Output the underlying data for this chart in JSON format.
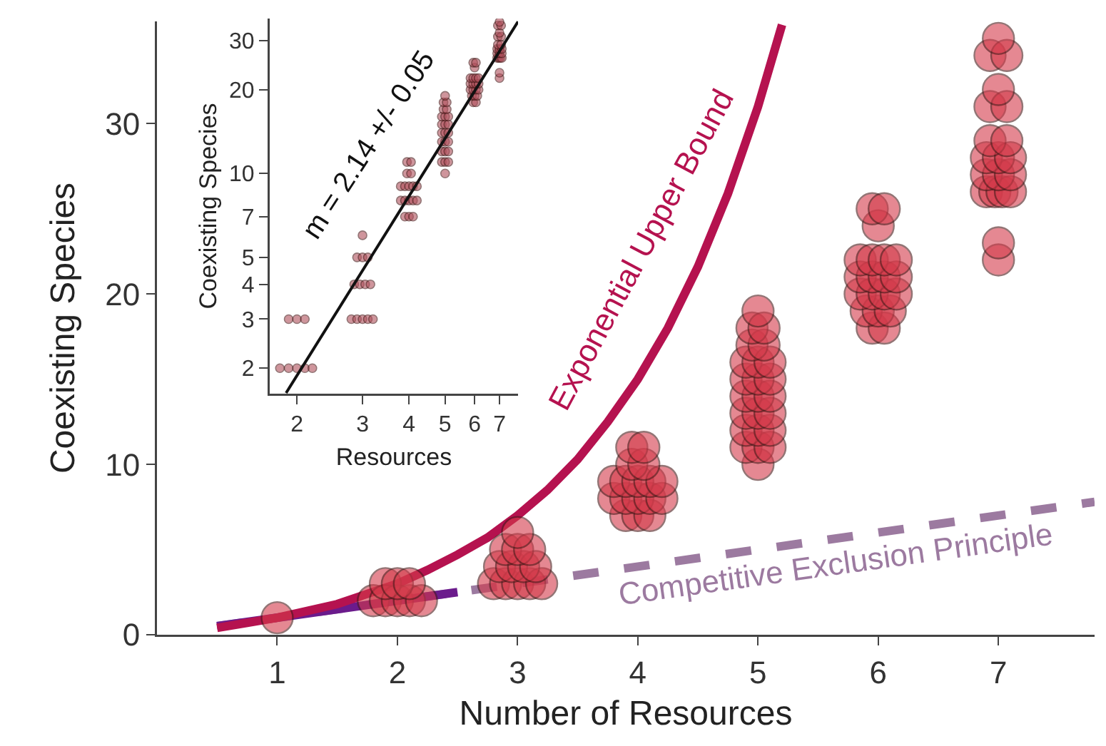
{
  "chart_data": [
    {
      "type": "scatter",
      "xlabel": "Number of Resources",
      "ylabel": "Coexisting Species",
      "xlim": [
        0,
        7.8
      ],
      "xticks": [
        1,
        2,
        3,
        4,
        5,
        6,
        7
      ],
      "ylim": [
        0,
        36
      ],
      "yticks": [
        0,
        10,
        20,
        30
      ],
      "grid": false,
      "series": [
        {
          "type": "line",
          "color": "#9c7aa0",
          "line_style": "dashed",
          "x": [
            0.5,
            7.8
          ],
          "values": [
            0.5,
            7.8
          ]
        },
        {
          "type": "line",
          "color": "#6b1b8c",
          "line_style": "solid",
          "x": [
            0.5,
            2.5
          ],
          "values": [
            0.5,
            2.5
          ]
        },
        {
          "type": "line",
          "color": "#b5124f",
          "line_style": "solid",
          "x": [
            0.5,
            0.75,
            1,
            1.25,
            1.5,
            1.75,
            2,
            2.25,
            2.5,
            2.75,
            3,
            3.25,
            3.5,
            3.75,
            4,
            4.25,
            4.5,
            4.75,
            5,
            5.2
          ],
          "values": [
            0.4,
            0.7,
            1,
            1.4,
            1.8,
            2.4,
            3,
            3.8,
            4.7,
            5.7,
            7,
            8.5,
            10.3,
            12.5,
            15,
            18,
            21.6,
            25.9,
            31,
            35.8
          ]
        },
        {
          "type": "scatter",
          "marker": "circle",
          "color": "#d43a4a",
          "x": [
            1,
            1.8,
            1.9,
            2,
            2.1,
            2.2,
            1.9,
            2,
            2.1,
            2.8,
            2.9,
            3,
            3.1,
            3.2,
            2.85,
            2.95,
            3.05,
            3.15,
            2.9,
            3,
            3.1,
            3,
            3.9,
            4,
            4.1,
            3.8,
            3.9,
            4,
            4.1,
            4.2,
            3.8,
            3.9,
            4,
            4.1,
            4.2,
            3.95,
            4.05,
            3.95,
            4.05,
            5,
            4.9,
            5,
            5.1,
            4.9,
            5,
            5.1,
            4.9,
            5,
            5.1,
            4.9,
            5,
            5.1,
            4.9,
            5,
            5.1,
            4.9,
            5,
            5.1,
            4.95,
            5.05,
            4.95,
            5.05,
            5,
            5.95,
            6.05,
            5.9,
            6,
            6.1,
            5.85,
            5.95,
            6.05,
            6.15,
            5.85,
            5.95,
            6.05,
            6.15,
            5.85,
            5.95,
            6.05,
            6.15,
            6,
            5.95,
            6.05,
            7,
            7,
            6.9,
            6.97,
            7.03,
            7.1,
            6.9,
            7,
            7.1,
            6.9,
            7,
            7.1,
            6.93,
            7.07,
            6.93,
            7.07,
            7,
            6.93,
            7.07,
            7
          ],
          "values": [
            1,
            2,
            2,
            2,
            2,
            2,
            3,
            3,
            3,
            3,
            3,
            3,
            3,
            3,
            4,
            4,
            4,
            4,
            5,
            5,
            5,
            6,
            7,
            7,
            7,
            8,
            8,
            8,
            8,
            8,
            9,
            9,
            9,
            9,
            9,
            10,
            10,
            11,
            11,
            10,
            11,
            11,
            11,
            12,
            12,
            12,
            13,
            13,
            13,
            14,
            14,
            14,
            15,
            15,
            15,
            16,
            16,
            16,
            17,
            17,
            18,
            18,
            19,
            18,
            18,
            19,
            19,
            19,
            20,
            20,
            20,
            20,
            21,
            21,
            21,
            21,
            22,
            22,
            22,
            22,
            24,
            25,
            25,
            22,
            23,
            26,
            26,
            26,
            26,
            27,
            27,
            27,
            28,
            28,
            28,
            29,
            29,
            31,
            31,
            32,
            34,
            34,
            35
          ]
        }
      ],
      "annotations": [
        "Exponential Upper Bound",
        "Competitive Exclusion Principle"
      ]
    },
    {
      "type": "scatter",
      "xlabel": "Resources",
      "ylabel": "Coexisting Species",
      "log": "xy",
      "xlim": [
        1.69,
        7.85
      ],
      "xticks": [
        2,
        3,
        4,
        5,
        6,
        7
      ],
      "ylim": [
        1.62,
        36
      ],
      "yticks": [
        2,
        3,
        4,
        5,
        7,
        10,
        20,
        30
      ],
      "grid": false,
      "series": [
        {
          "type": "scatter",
          "marker": "circle",
          "color": "#b0505c",
          "x": [
            1.8,
            1.9,
            2,
            2.1,
            2.2,
            1.9,
            2,
            2.1,
            2.8,
            2.9,
            3,
            3.1,
            3.2,
            2.85,
            2.95,
            3.05,
            3.15,
            2.9,
            3,
            3.1,
            3,
            3.9,
            4,
            4.1,
            3.8,
            3.9,
            4,
            4.1,
            4.2,
            3.8,
            3.9,
            4,
            4.1,
            4.2,
            3.95,
            4.05,
            3.95,
            4.05,
            5,
            4.9,
            5,
            5.1,
            4.9,
            5,
            5.1,
            4.9,
            5,
            5.1,
            4.9,
            5,
            5.1,
            4.9,
            5,
            5.1,
            4.9,
            5,
            5.1,
            4.95,
            5.05,
            4.95,
            5.05,
            5,
            5.95,
            6.05,
            5.9,
            6,
            6.1,
            5.85,
            5.95,
            6.05,
            6.15,
            5.85,
            5.95,
            6.05,
            6.15,
            5.85,
            5.95,
            6.05,
            6.15,
            6,
            5.95,
            6.05,
            7,
            7,
            6.9,
            6.97,
            7.03,
            7.1,
            6.9,
            7,
            7.1,
            6.9,
            7,
            7.1,
            6.93,
            7.07,
            6.93,
            7.07,
            7,
            6.93,
            7.07,
            7
          ],
          "values": [
            2,
            2,
            2,
            2,
            2,
            3,
            3,
            3,
            3,
            3,
            3,
            3,
            3,
            4,
            4,
            4,
            4,
            5,
            5,
            5,
            6,
            7,
            7,
            7,
            8,
            8,
            8,
            8,
            8,
            9,
            9,
            9,
            9,
            9,
            10,
            10,
            11,
            11,
            10,
            11,
            11,
            11,
            12,
            12,
            12,
            13,
            13,
            13,
            14,
            14,
            14,
            15,
            15,
            15,
            16,
            16,
            16,
            17,
            17,
            18,
            18,
            19,
            18,
            18,
            19,
            19,
            19,
            20,
            20,
            20,
            20,
            21,
            21,
            21,
            21,
            22,
            22,
            22,
            22,
            24,
            25,
            25,
            22,
            23,
            26,
            26,
            26,
            26,
            27,
            27,
            27,
            28,
            28,
            28,
            29,
            29,
            31,
            31,
            32,
            34,
            34,
            35
          ]
        },
        {
          "type": "line",
          "color": "#111111",
          "line_style": "solid",
          "x": [
            1.87,
            7.85
          ],
          "values": [
            1.63,
            35.1
          ]
        }
      ],
      "annotations": [
        "m = 2.14 +/- 0.05"
      ]
    }
  ]
}
